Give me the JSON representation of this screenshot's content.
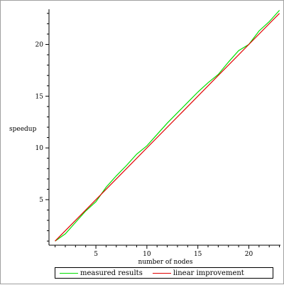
{
  "chart_data": {
    "type": "line",
    "xlabel": "number of nodes",
    "ylabel": "speedup",
    "xlim": [
      0.4,
      23.1
    ],
    "ylim": [
      0.6,
      23.4
    ],
    "xticks": [
      5,
      10,
      15,
      20
    ],
    "yticks": [
      5,
      10,
      15,
      20
    ],
    "grid": false,
    "legend_position": "bottom",
    "series": [
      {
        "name": "measured results",
        "color": "#00e000",
        "x": [
          1,
          2,
          3,
          4,
          5,
          6,
          7,
          8,
          9,
          10,
          11,
          12,
          13,
          14,
          15,
          16,
          17,
          18,
          19,
          20,
          21,
          22,
          23
        ],
        "y": [
          1.0,
          1.7,
          2.8,
          3.9,
          4.8,
          6.2,
          7.3,
          8.3,
          9.4,
          10.2,
          11.3,
          12.4,
          13.4,
          14.4,
          15.4,
          16.3,
          17.1,
          18.3,
          19.4,
          20.0,
          21.3,
          22.2,
          23.3
        ]
      },
      {
        "name": "linear improvement",
        "color": "#e00000",
        "x": [
          1,
          23
        ],
        "y": [
          1,
          23
        ]
      }
    ]
  }
}
